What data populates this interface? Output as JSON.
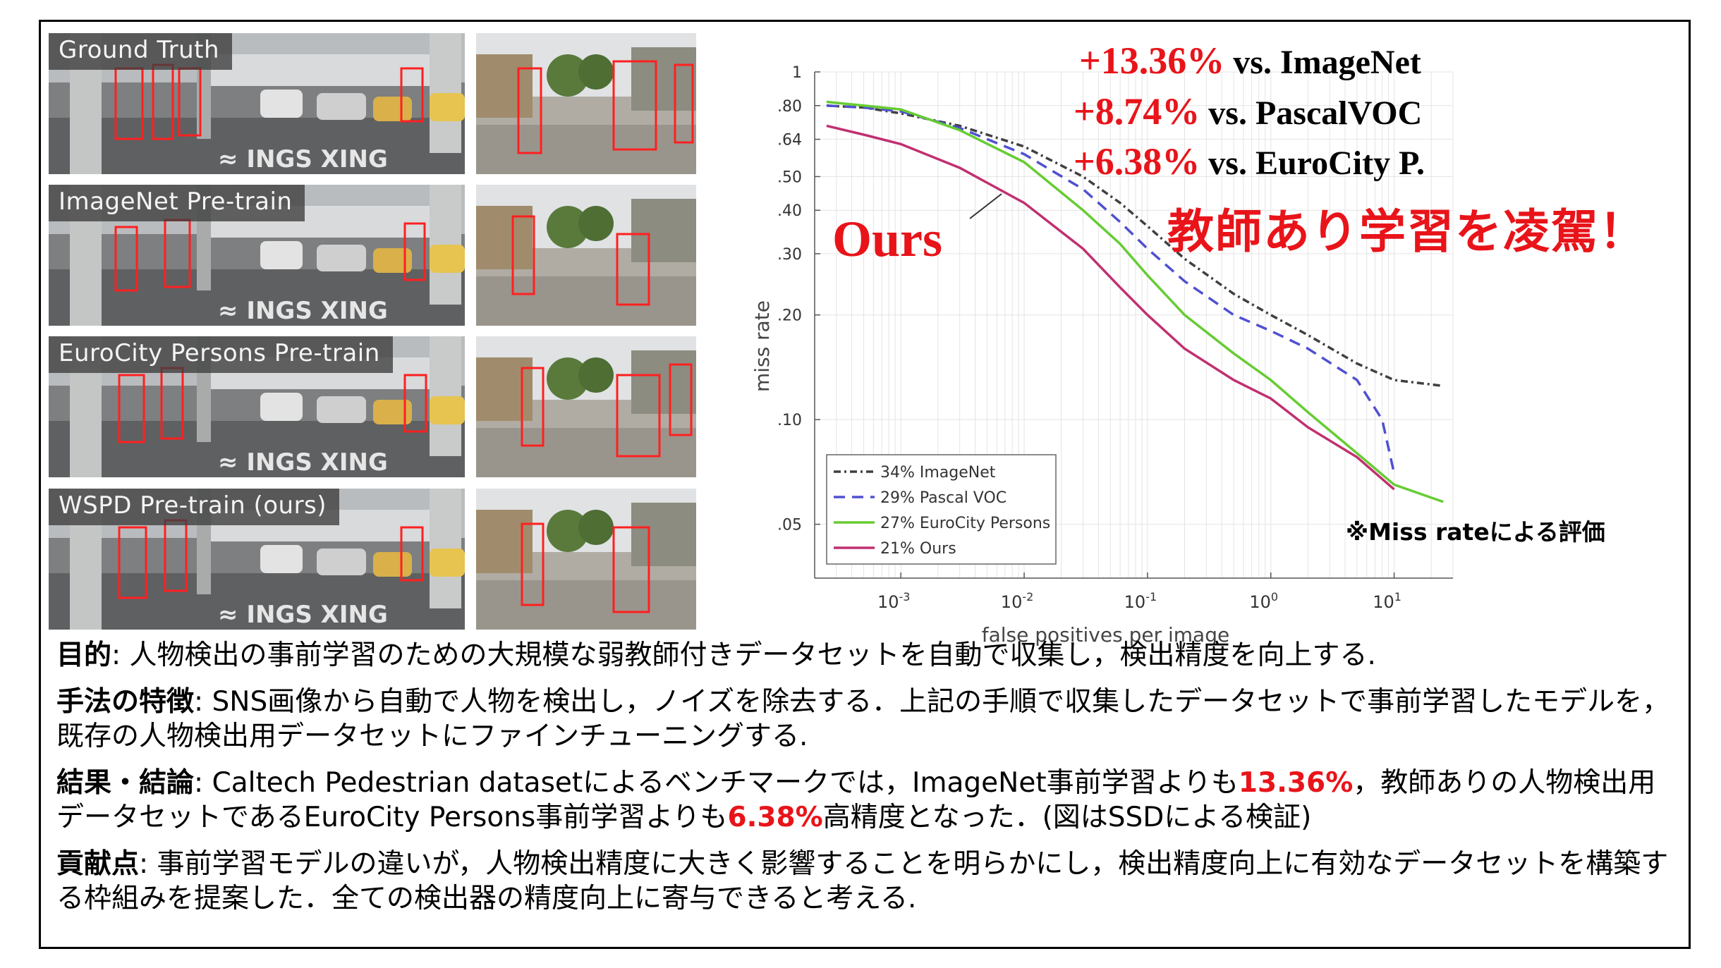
{
  "figure": {
    "photo_rows": [
      {
        "label": "Ground Truth"
      },
      {
        "label": "ImageNet Pre-train"
      },
      {
        "label": "EuroCity Persons Pre-train"
      },
      {
        "label": "WSPD Pre-train (ours)"
      }
    ],
    "gains": [
      {
        "value": "+13.36%",
        "text": "vs. ImageNet"
      },
      {
        "value": "+8.74%",
        "text": "vs. PascalVOC"
      },
      {
        "value": "+6.38%",
        "text": "vs. EuroCity P."
      }
    ],
    "headline": "教師あり学習を凌駕！",
    "ours_label": "Ours",
    "eval_note": "※Miss rateによる評価"
  },
  "chart_data": {
    "type": "line",
    "xlabel": "false positives per image",
    "ylabel": "miss rate",
    "x_scale": "log",
    "y_scale": "log",
    "xlim": [
      0.0002,
      30
    ],
    "ylim": [
      0.035,
      1
    ],
    "x_tick_labels": [
      "10-3",
      "10-2",
      "10-1",
      "100",
      "101"
    ],
    "x_ticks": [
      0.001,
      0.01,
      0.1,
      1,
      10
    ],
    "y_ticks": [
      1,
      0.8,
      0.64,
      0.5,
      0.4,
      0.3,
      0.2,
      0.1,
      0.05
    ],
    "y_tick_labels": [
      "1",
      ".80",
      ".64",
      ".50",
      ".40",
      ".30",
      ".20",
      ".10",
      ".05"
    ],
    "grid": true,
    "legend_position": "bottom-left",
    "series": [
      {
        "name": "34% ImageNet",
        "color": "#404040",
        "dash": "dashdot",
        "x": [
          0.00025,
          0.0005,
          0.001,
          0.003,
          0.01,
          0.03,
          0.06,
          0.1,
          0.2,
          0.5,
          1,
          2,
          5,
          10,
          25
        ],
        "y": [
          0.8,
          0.79,
          0.76,
          0.7,
          0.61,
          0.5,
          0.42,
          0.36,
          0.29,
          0.23,
          0.2,
          0.175,
          0.145,
          0.13,
          0.125
        ]
      },
      {
        "name": "29% Pascal VOC",
        "color": "#5050d0",
        "dash": "dashed",
        "x": [
          0.00025,
          0.0005,
          0.001,
          0.003,
          0.01,
          0.03,
          0.06,
          0.1,
          0.2,
          0.5,
          1,
          2,
          5,
          8,
          10
        ],
        "y": [
          0.8,
          0.79,
          0.77,
          0.69,
          0.58,
          0.46,
          0.37,
          0.31,
          0.25,
          0.2,
          0.18,
          0.16,
          0.13,
          0.1,
          0.07
        ]
      },
      {
        "name": "27% EuroCity Persons",
        "color": "#66cc33",
        "dash": "solid",
        "x": [
          0.00025,
          0.0005,
          0.001,
          0.003,
          0.01,
          0.03,
          0.06,
          0.1,
          0.2,
          0.5,
          1,
          2,
          5,
          10,
          25
        ],
        "y": [
          0.82,
          0.8,
          0.78,
          0.68,
          0.55,
          0.4,
          0.32,
          0.26,
          0.2,
          0.155,
          0.13,
          0.105,
          0.08,
          0.065,
          0.058
        ]
      },
      {
        "name": "21% Ours",
        "color": "#c03070",
        "dash": "solid",
        "x": [
          0.00025,
          0.0005,
          0.001,
          0.003,
          0.01,
          0.03,
          0.06,
          0.1,
          0.2,
          0.5,
          1,
          2,
          5,
          10
        ],
        "y": [
          0.7,
          0.66,
          0.62,
          0.53,
          0.42,
          0.31,
          0.24,
          0.2,
          0.16,
          0.13,
          0.115,
          0.095,
          0.078,
          0.063
        ]
      }
    ]
  },
  "sections": [
    {
      "label": "目的",
      "text": ": 人物検出の事前学習のための大規模な弱教師付きデータセットを自動で収集し，検出精度を向上する."
    },
    {
      "label": "手法の特徴",
      "text": ": SNS画像から自動で人物を検出し，ノイズを除去する．上記の手順で収集したデータセットで事前学習したモデルを，既存の人物検出用データセットにファインチューニングする."
    },
    {
      "label": "結果・結論",
      "text_1": ": Caltech Pedestrian datasetによるベンチマークでは，ImageNet事前学習よりも",
      "hl_1": "13.36%",
      "text_2": "，教師ありの人物検出用データセットであるEuroCity Persons事前学習よりも",
      "hl_2": "6.38%",
      "text_3": "高精度となった．(図はSSDによる検証)"
    },
    {
      "label": "貢献点",
      "text": ": 事前学習モデルの違いが，人物検出精度に大きく影響することを明らかにし，検出精度向上に有効なデータセットを構築する枠組みを提案した．全ての検出器の精度向上に寄与できると考える."
    }
  ]
}
